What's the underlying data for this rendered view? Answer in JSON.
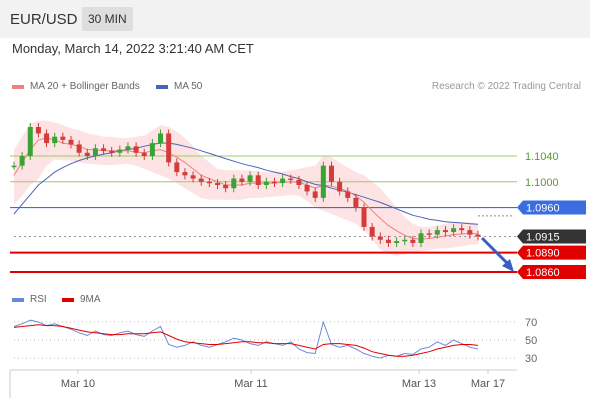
{
  "header": {
    "pair": "EUR/USD",
    "timeframe": "30 MIN"
  },
  "datetime": "Monday, March 14, 2022 3:21:40 AM CET",
  "legend": {
    "ma_bb": "MA 20 + Bollinger Bands",
    "ma50": "MA 50",
    "rsi": "RSI",
    "ma9": "9MA"
  },
  "credit": "Research © 2022 Trading Central",
  "colors": {
    "ma20": "#f08080",
    "bb_fill": "#fde0e0",
    "ma50": "#4a64b8",
    "resistance": "#9ccc65",
    "pivot": "#3a6ee0",
    "support": "#e00000",
    "last": "#333333",
    "arrow": "#3a5fbf",
    "rsi": "#6b8ad6",
    "rsi_ma": "#e00000",
    "candle_up": "#3aa335",
    "candle_down": "#d23c3c"
  },
  "chart_data": [
    {
      "type": "line",
      "yaxis": "EUR/USD price",
      "xlabels": [
        "Mar 10",
        "Mar 11",
        "Mar 13",
        "Mar 17"
      ],
      "levels": [
        {
          "label": "1.1040",
          "value": 1.104,
          "kind": "resistance"
        },
        {
          "label": "1.1000",
          "value": 1.1,
          "kind": "resistance"
        },
        {
          "label": "1.0960",
          "value": 1.096,
          "kind": "pivot"
        },
        {
          "label": "1.0915",
          "value": 1.0915,
          "kind": "last"
        },
        {
          "label": "1.0890",
          "value": 1.089,
          "kind": "support"
        },
        {
          "label": "1.0860",
          "value": 1.086,
          "kind": "support"
        }
      ],
      "price_series": [
        1.1025,
        1.104,
        1.1085,
        1.1075,
        1.106,
        1.107,
        1.1065,
        1.1058,
        1.1045,
        1.104,
        1.1052,
        1.1048,
        1.1045,
        1.105,
        1.1055,
        1.1045,
        1.104,
        1.106,
        1.1075,
        1.103,
        1.1015,
        1.101,
        1.1005,
        1.1,
        1.0998,
        1.0995,
        1.099,
        1.1005,
        1.1,
        1.101,
        1.0995,
        1.1,
        1.0998,
        1.1005,
        1.1003,
        1.0995,
        1.0985,
        1.0975,
        1.1025,
        1.1,
        1.0985,
        1.0975,
        1.096,
        1.093,
        1.0915,
        1.091,
        1.0905,
        1.0908,
        1.091,
        1.0905,
        1.092,
        1.0918,
        1.0925,
        1.0922,
        1.0928,
        1.0925,
        1.0918,
        1.0915
      ],
      "ma20_series": [
        1.101,
        1.103,
        1.105,
        1.1065,
        1.1068,
        1.1065,
        1.106,
        1.1058,
        1.1055,
        1.105,
        1.105,
        1.1048,
        1.1048,
        1.1048,
        1.1048,
        1.1046,
        1.1045,
        1.1048,
        1.105,
        1.1045,
        1.1038,
        1.103,
        1.102,
        1.101,
        1.1005,
        1.1,
        1.0995,
        1.0995,
        1.0995,
        1.0998,
        1.0998,
        1.0998,
        1.0998,
        1.0999,
        1.1,
        1.0999,
        1.0995,
        1.099,
        1.0995,
        1.0993,
        1.099,
        1.0985,
        1.0978,
        1.0968,
        1.0955,
        1.0943,
        1.0932,
        1.0924,
        1.0917,
        1.0912,
        1.0911,
        1.0912,
        1.0914,
        1.0916,
        1.0918,
        1.0919,
        1.092,
        1.0919
      ],
      "bb_upper": [
        1.105,
        1.107,
        1.109,
        1.1095,
        1.1095,
        1.1092,
        1.1088,
        1.1083,
        1.108,
        1.1075,
        1.1073,
        1.107,
        1.107,
        1.1068,
        1.1068,
        1.107,
        1.1072,
        1.108,
        1.1088,
        1.1085,
        1.1078,
        1.1068,
        1.1055,
        1.104,
        1.103,
        1.102,
        1.1018,
        1.1018,
        1.1018,
        1.1018,
        1.1016,
        1.1015,
        1.1015,
        1.1016,
        1.1018,
        1.102,
        1.1023,
        1.1025,
        1.104,
        1.1038,
        1.103,
        1.1022,
        1.1015,
        1.101,
        1.1,
        1.099,
        1.0975,
        1.096,
        1.0945,
        1.0935,
        1.093,
        1.093,
        1.0932,
        1.0935,
        1.0938,
        1.0938,
        1.0937,
        1.0935
      ],
      "bb_lower": [
        1.0965,
        1.0978,
        1.0995,
        1.1005,
        1.1025,
        1.1035,
        1.1033,
        1.1033,
        1.103,
        1.1028,
        1.1027,
        1.1026,
        1.1026,
        1.1027,
        1.1028,
        1.1025,
        1.102,
        1.1015,
        1.101,
        1.1005,
        1.0998,
        1.099,
        1.0982,
        1.0975,
        1.0972,
        1.0972,
        1.0972,
        1.0972,
        1.0972,
        1.0975,
        1.0975,
        1.0976,
        1.0977,
        1.0978,
        1.098,
        1.0978,
        1.097,
        1.096,
        1.0955,
        1.095,
        1.0945,
        1.094,
        1.0935,
        1.0925,
        1.091,
        1.0895,
        1.0888,
        1.0885,
        1.0888,
        1.089,
        1.0892,
        1.0894,
        1.0896,
        1.0897,
        1.0898,
        1.09,
        1.0902,
        1.0903
      ],
      "ma50_series": [
        1.095,
        1.0965,
        1.098,
        1.0995,
        1.1005,
        1.1015,
        1.1022,
        1.1028,
        1.1033,
        1.1037,
        1.104,
        1.1043,
        1.1045,
        1.1048,
        1.105,
        1.1052,
        1.1055,
        1.1058,
        1.106,
        1.106,
        1.1058,
        1.1055,
        1.1052,
        1.1048,
        1.1044,
        1.104,
        1.1036,
        1.1032,
        1.1028,
        1.1025,
        1.1022,
        1.1018,
        1.1015,
        1.1012,
        1.1008,
        1.1005,
        1.1,
        1.0996,
        1.0994,
        1.099,
        1.0987,
        1.0984,
        1.098,
        1.0976,
        1.0972,
        1.0968,
        1.0963,
        1.0958,
        1.0953,
        1.0948,
        1.0945,
        1.0942,
        1.094,
        1.0938,
        1.0937,
        1.0936,
        1.0935,
        1.0934
      ]
    },
    {
      "type": "line",
      "name": "RSI",
      "yticks": [
        "70",
        "50",
        "30"
      ],
      "ylim": [
        20,
        80
      ],
      "rsi_series": [
        65,
        68,
        72,
        70,
        66,
        68,
        65,
        62,
        58,
        55,
        60,
        56,
        55,
        58,
        60,
        56,
        54,
        60,
        65,
        45,
        42,
        44,
        48,
        44,
        42,
        45,
        48,
        52,
        50,
        46,
        44,
        48,
        46,
        44,
        48,
        40,
        36,
        35,
        70,
        45,
        42,
        44,
        40,
        35,
        32,
        30,
        33,
        32,
        35,
        34,
        40,
        42,
        48,
        44,
        50,
        46,
        42,
        40
      ],
      "rsi_ma_series": [
        64,
        65,
        66,
        67,
        66,
        66,
        65,
        63,
        61,
        59,
        58,
        57,
        56,
        56,
        57,
        57,
        57,
        58,
        59,
        55,
        51,
        48,
        47,
        46,
        45,
        45,
        46,
        47,
        48,
        48,
        47,
        47,
        46,
        46,
        46,
        44,
        42,
        40,
        45,
        46,
        46,
        45,
        44,
        41,
        37,
        35,
        33,
        32,
        32,
        33,
        35,
        37,
        40,
        42,
        44,
        45,
        45,
        44
      ]
    }
  ]
}
